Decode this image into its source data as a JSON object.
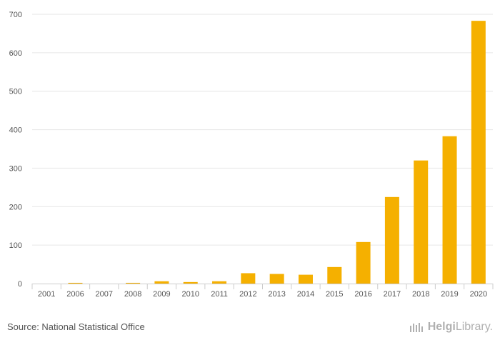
{
  "chart_data": {
    "type": "bar",
    "title": "",
    "xlabel": "",
    "ylabel": "",
    "categories": [
      "2001",
      "2006",
      "2007",
      "2008",
      "2009",
      "2010",
      "2011",
      "2012",
      "2013",
      "2014",
      "2015",
      "2016",
      "2017",
      "2018",
      "2019",
      "2020"
    ],
    "values": [
      0,
      2,
      0,
      2,
      6,
      4,
      6,
      27,
      25,
      23,
      43,
      108,
      225,
      320,
      383,
      683
    ],
    "ylim": [
      0,
      700
    ],
    "yticks": [
      0,
      100,
      200,
      300,
      400,
      500,
      600,
      700
    ],
    "grid": true,
    "bar_color": "#f5b000"
  },
  "footer": {
    "source": "Source: National Statistical Office",
    "brand_bold": "Helgi",
    "brand_light": "Library."
  },
  "colors": {
    "grid": "#e6e6e6",
    "axis": "#cccccc",
    "text": "#555555",
    "brand": "#b0b0b0"
  }
}
